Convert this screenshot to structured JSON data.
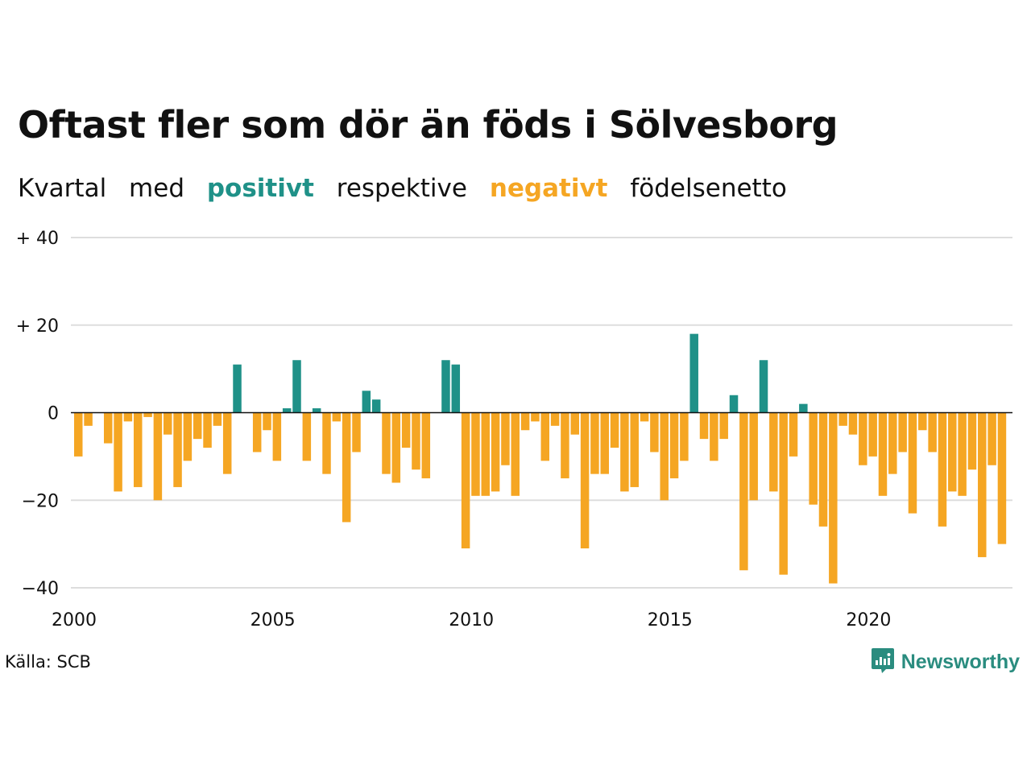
{
  "title": "Oftast fler som dör än föds i Sölvesborg",
  "subtitle": {
    "part1": "Kvartal",
    "part2": "med",
    "positive": "positivt",
    "part3": "respektive",
    "negative": "negativt",
    "part4": "födelsenetto"
  },
  "source": "Källa: SCB",
  "brand": "Newsworthy",
  "colors": {
    "positive": "#1f9188",
    "negative": "#f5a623",
    "brand": "#2a8c7f"
  },
  "chart_data": {
    "type": "bar",
    "title": "Oftast fler som dör än föds i Sölvesborg",
    "xlabel": "",
    "ylabel": "",
    "ylim": [
      -40,
      40
    ],
    "grid": true,
    "y_ticks": [
      {
        "value": 40,
        "label": "+ 40"
      },
      {
        "value": 20,
        "label": "+ 20"
      },
      {
        "value": 0,
        "label": "0"
      },
      {
        "value": -20,
        "label": "−20"
      },
      {
        "value": -40,
        "label": "−40"
      }
    ],
    "x_ticks": [
      {
        "year": 2000,
        "label": "2000"
      },
      {
        "year": 2005,
        "label": "2005"
      },
      {
        "year": 2010,
        "label": "2010"
      },
      {
        "year": 2015,
        "label": "2015"
      },
      {
        "year": 2020,
        "label": "2020"
      }
    ],
    "first_quarter": "2000-Q1",
    "values": [
      -10,
      -3,
      0,
      -7,
      -18,
      -2,
      -17,
      -1,
      -20,
      -5,
      -17,
      -11,
      -6,
      -8,
      -3,
      -14,
      11,
      0,
      -9,
      -4,
      -11,
      1,
      12,
      -11,
      1,
      -14,
      -2,
      -25,
      -9,
      5,
      3,
      -14,
      -16,
      -8,
      -13,
      -15,
      0,
      12,
      11,
      -31,
      -19,
      -19,
      -18,
      -12,
      -19,
      -4,
      -2,
      -11,
      -3,
      -15,
      -5,
      -31,
      -14,
      -14,
      -8,
      -18,
      -17,
      -2,
      -9,
      -20,
      -15,
      -11,
      18,
      -6,
      -11,
      -6,
      4,
      -36,
      -20,
      12,
      -18,
      -37,
      -10,
      2,
      -21,
      -26,
      -39,
      -3,
      -5,
      -12,
      -10,
      -19,
      -14,
      -9,
      -23,
      -4,
      -9,
      -26,
      -18,
      -19,
      -13,
      -33,
      -12,
      -30
    ]
  }
}
